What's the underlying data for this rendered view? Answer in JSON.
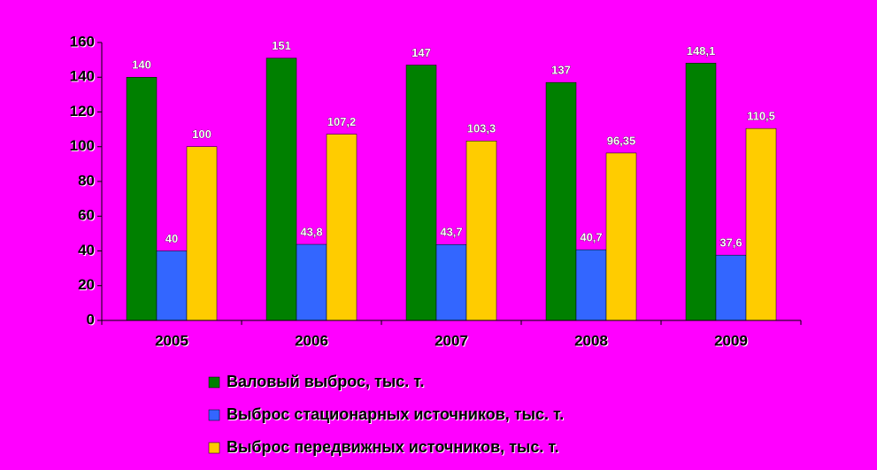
{
  "chart_data": {
    "type": "bar",
    "categories": [
      "2005",
      "2006",
      "2007",
      "2008",
      "2009"
    ],
    "series": [
      {
        "name": "Валовый выброс, тыс. т.",
        "color": "#008000",
        "values": [
          140,
          151,
          147,
          137,
          148.1
        ],
        "value_labels": [
          "140",
          "151",
          "147",
          "137",
          "148,1"
        ]
      },
      {
        "name": "Выброс стационарных источников, тыс. т.",
        "color": "#3366ff",
        "values": [
          40,
          43.8,
          43.7,
          40.7,
          37.6
        ],
        "value_labels": [
          "40",
          "43,8",
          "43,7",
          "40,7",
          "37,6"
        ]
      },
      {
        "name": "Выброс передвижных источников, тыс. т.",
        "color": "#ffcc00",
        "values": [
          100,
          107.2,
          103.3,
          96.35,
          110.5
        ],
        "value_labels": [
          "100",
          "107,2",
          "103,3",
          "96,35",
          "110,5"
        ]
      }
    ],
    "ylim": [
      0,
      160
    ],
    "yticks": [
      0,
      20,
      40,
      60,
      80,
      100,
      120,
      140,
      160
    ],
    "grid": false,
    "legend": "bottom"
  }
}
